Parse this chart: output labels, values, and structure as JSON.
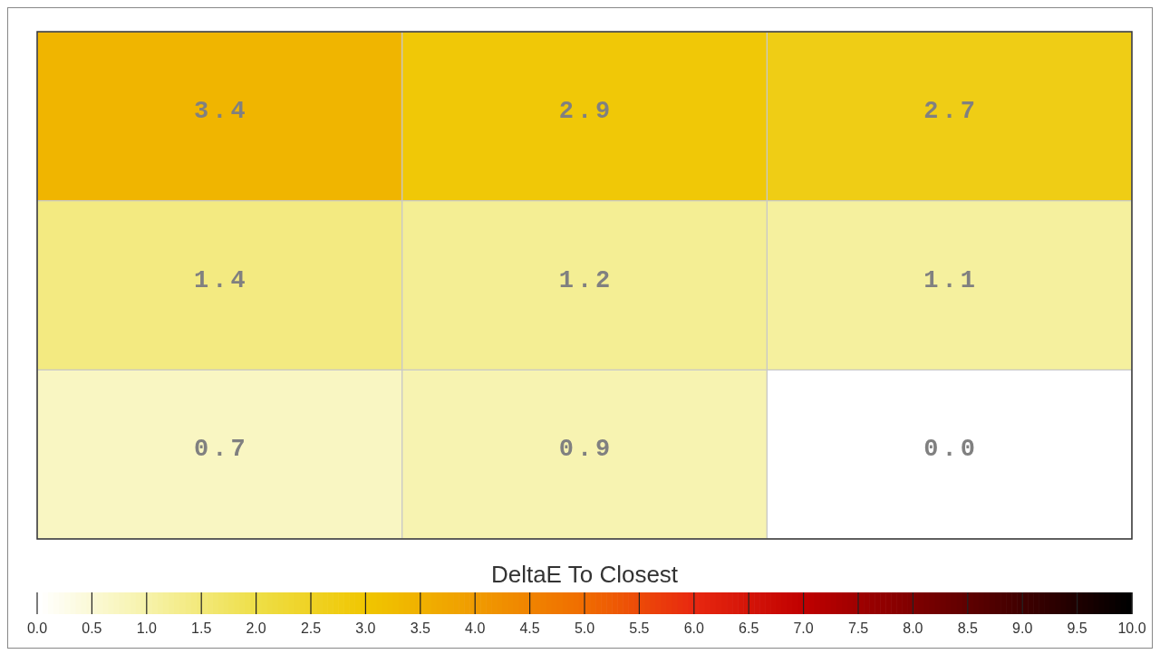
{
  "chart_data": {
    "type": "heatmap",
    "clabel": "DeltaE To Closest",
    "categories": [
      null,
      null,
      null
    ],
    "y_categories": [
      null,
      null,
      null
    ],
    "cells": [
      [
        3.4,
        2.9,
        2.7
      ],
      [
        1.4,
        1.2,
        1.1
      ],
      [
        0.7,
        0.9,
        0.0
      ]
    ],
    "cell_labels": [
      [
        "3.4",
        "2.9",
        "2.7"
      ],
      [
        "1.4",
        "1.2",
        "1.1"
      ],
      [
        "0.7",
        "0.9",
        "0.0"
      ]
    ],
    "clim": [
      0,
      10
    ],
    "cticks": [
      {
        "value": 0,
        "label": "0.0"
      },
      0.5,
      {
        "value": 1,
        "label": "1.0"
      },
      1.5,
      {
        "value": 2,
        "label": "2.0"
      },
      2.5,
      {
        "value": 3,
        "label": "3.0"
      },
      3.5,
      {
        "value": 4,
        "label": "4.0"
      },
      4.5,
      {
        "value": 5,
        "label": "5.0"
      },
      5.5,
      {
        "value": 6,
        "label": "6.0"
      },
      6.5,
      {
        "value": 7,
        "label": "7.0"
      },
      7.5,
      {
        "value": 8,
        "label": "8.0"
      },
      8.5,
      {
        "value": 9,
        "label": "9.0"
      },
      9.5,
      {
        "value": 10,
        "label": "10.0"
      }
    ]
  }
}
